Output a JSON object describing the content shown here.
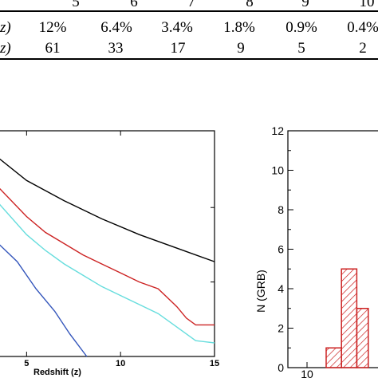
{
  "table": {
    "header": [
      "5",
      "6",
      "7",
      "8",
      "9",
      "10"
    ],
    "rows": [
      {
        "label": "z)",
        "values": [
          "12%",
          "6.4%",
          "3.4%",
          "1.8%",
          "0.9%",
          "0.4%"
        ]
      },
      {
        "label": "z)",
        "values": [
          "61",
          "33",
          "17",
          "9",
          "5",
          "2"
        ]
      }
    ]
  },
  "chart_data": [
    {
      "type": "line",
      "xlabel": "Redshift (z)",
      "xticks": [
        "5",
        "10",
        "15"
      ],
      "xlim": [
        3.5,
        15
      ],
      "series": [
        {
          "color": "#000000",
          "x": [
            3.5,
            5,
            7,
            9,
            11,
            13,
            15
          ],
          "y": [
            0.88,
            0.78,
            0.69,
            0.61,
            0.54,
            0.48,
            0.42
          ]
        },
        {
          "color": "#cc2222",
          "x": [
            3.5,
            5,
            6,
            7,
            8,
            9,
            10,
            11,
            12,
            12.5,
            13,
            13.5,
            14,
            15
          ],
          "y": [
            0.75,
            0.62,
            0.55,
            0.5,
            0.45,
            0.41,
            0.37,
            0.33,
            0.3,
            0.26,
            0.22,
            0.17,
            0.14,
            0.14
          ]
        },
        {
          "color": "#66dddd",
          "x": [
            3.5,
            5,
            6,
            7,
            8,
            9,
            10,
            11,
            12,
            13,
            14,
            15
          ],
          "y": [
            0.68,
            0.54,
            0.47,
            0.41,
            0.36,
            0.31,
            0.27,
            0.23,
            0.19,
            0.13,
            0.07,
            0.06
          ]
        },
        {
          "color": "#3355bb",
          "x": [
            3.5,
            4.5,
            5.5,
            6.5,
            7.3,
            8.2
          ],
          "y": [
            0.5,
            0.42,
            0.3,
            0.2,
            0.1,
            0.0
          ]
        }
      ]
    },
    {
      "type": "bar",
      "ylabel": "N (GRB)",
      "yticks": [
        "0",
        "2",
        "4",
        "6",
        "8",
        "10",
        "12"
      ],
      "ylim": [
        0,
        12
      ],
      "xticks": [
        "10"
      ],
      "bins": [
        {
          "x0": 11.0,
          "x1": 11.8,
          "value": 1
        },
        {
          "x0": 11.8,
          "x1": 12.6,
          "value": 5
        },
        {
          "x0": 12.6,
          "x1": 13.2,
          "value": 3
        }
      ],
      "bar_color": "#cc2222"
    }
  ]
}
